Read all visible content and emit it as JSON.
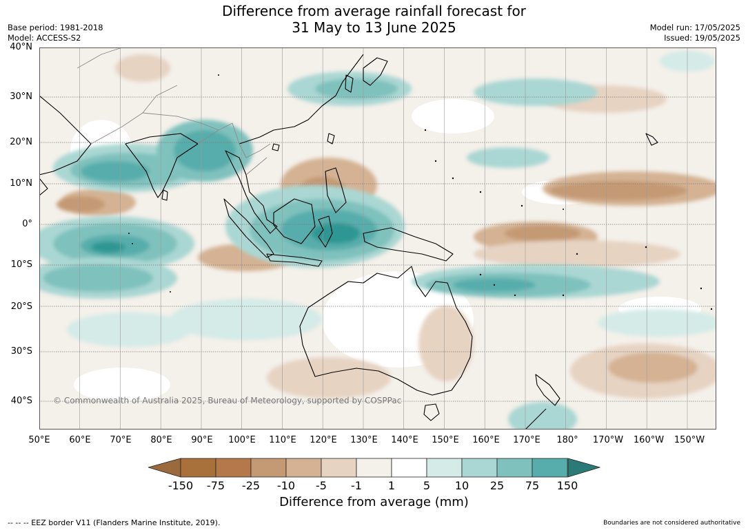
{
  "title": {
    "line1": "Difference from average rainfall forecast for",
    "line2": "31 May to 13 June 2025"
  },
  "meta": {
    "base_period": "Base period: 1981-2018",
    "model": "Model: ACCESS-S2",
    "model_run": "Model run: 17/05/2025",
    "issued": "Issued: 19/05/2025"
  },
  "map": {
    "region": "Indo-Pacific / Australia",
    "lat_labels": [
      "40°N",
      "30°N",
      "20°N",
      "10°N",
      "0°",
      "10°S",
      "20°S",
      "30°S",
      "40°S"
    ],
    "lon_labels": [
      "50°E",
      "60°E",
      "70°E",
      "80°E",
      "90°E",
      "100°E",
      "110°E",
      "120°E",
      "130°E",
      "140°E",
      "150°E",
      "160°E",
      "170°E",
      "180°",
      "170°W",
      "160°W",
      "150°W"
    ],
    "copyright": "© Commonwealth of Australia 2025, Bureau of Meteorology, supported by COSPPac",
    "ocean_neutral_color": "#f4f0ea",
    "land_outline_color": "#000000",
    "border_color": "#8a8a8a"
  },
  "colorbar": {
    "labels": [
      "-150",
      "-75",
      "-25",
      "-10",
      "-5",
      "-1",
      "1",
      "5",
      "10",
      "25",
      "75",
      "150"
    ],
    "colors": [
      "#a8703a",
      "#b5784a",
      "#c49a75",
      "#d4b293",
      "#e6d3c2",
      "#f4f0ea",
      "#ffffff",
      "#d4ebe8",
      "#aad7d3",
      "#7fc1bd",
      "#57adab",
      "#2f9793"
    ],
    "extend_low_color": "#9b6a3c",
    "extend_high_color": "#2b7a78",
    "title": "Difference from average (mm)"
  },
  "footer": {
    "eez": "--  --  -- EEZ border V11 (Flanders Marine Institute, 2019).",
    "disclaimer": "Boundaries are not considered authoritative"
  }
}
